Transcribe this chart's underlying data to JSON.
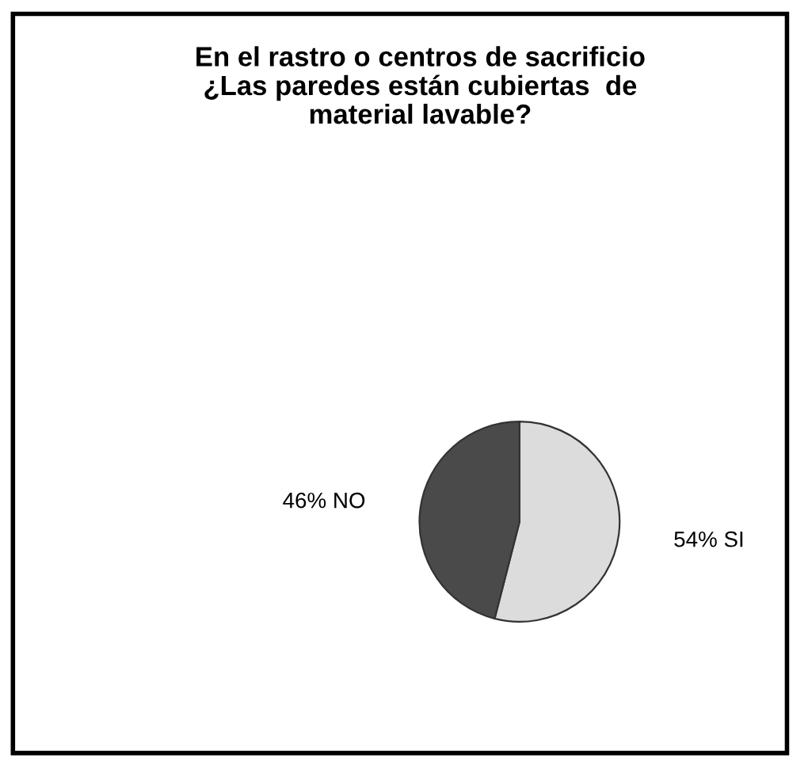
{
  "chart_data": {
    "type": "pie",
    "title": "En el rastro o centros de sacrificio\n¿Las paredes están cubiertas  de\nmaterial lavable?",
    "categories": [
      "SI",
      "NO"
    ],
    "values": [
      54,
      46
    ],
    "value_labels": [
      "54%",
      "46%"
    ],
    "colors": [
      "#dcdcdc",
      "#4a4a4a"
    ],
    "legend": false
  }
}
